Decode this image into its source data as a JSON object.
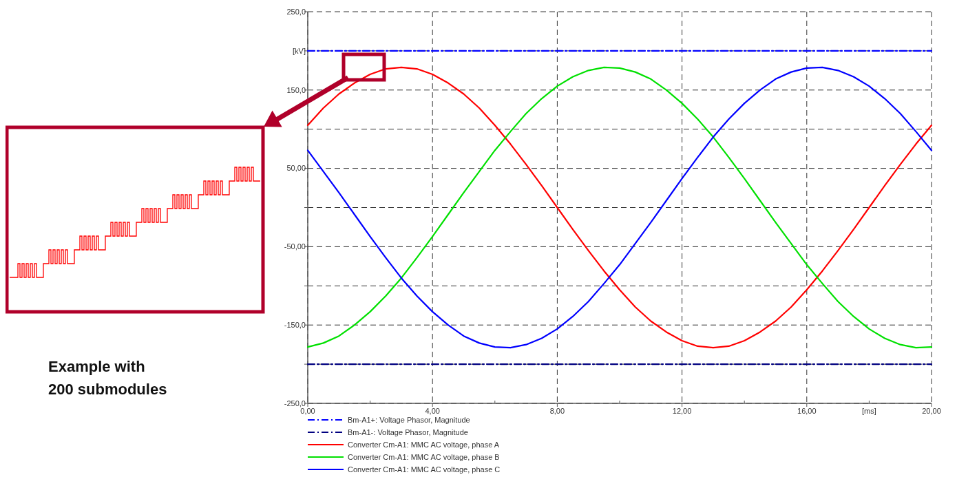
{
  "chart_data": {
    "type": "line",
    "xlabel": "[ms]",
    "ylabel": "[kV]",
    "xlim": [
      0,
      20
    ],
    "ylim": [
      -250,
      250
    ],
    "xticks": [
      {
        "value": 0,
        "label": "0,00"
      },
      {
        "value": 4,
        "label": "4,00"
      },
      {
        "value": 8,
        "label": "8,00"
      },
      {
        "value": 12,
        "label": "12,00"
      },
      {
        "value": 16,
        "label": "16,00"
      },
      {
        "value": 20,
        "label": "20,00"
      }
    ],
    "yticks": [
      {
        "value": -250,
        "label": "-250,0"
      },
      {
        "value": -200,
        "label": null
      },
      {
        "value": -150,
        "label": "-150,0"
      },
      {
        "value": -100,
        "label": null
      },
      {
        "value": -50,
        "label": "-50,00"
      },
      {
        "value": 0,
        "label": null
      },
      {
        "value": 50,
        "label": "50,00"
      },
      {
        "value": 100,
        "label": null
      },
      {
        "value": 150,
        "label": "150,0"
      },
      {
        "value": 200,
        "label": null
      },
      {
        "value": 250,
        "label": "250,0"
      }
    ],
    "grid": true,
    "legend": "bottom",
    "annotations": [
      "Example with 200 submodules"
    ],
    "x": [
      0,
      0.5,
      1,
      1.5,
      2,
      2.5,
      3,
      3.5,
      4,
      4.5,
      5,
      5.5,
      6,
      6.5,
      7,
      7.5,
      8,
      8.5,
      9,
      9.5,
      10,
      10.5,
      11,
      11.5,
      12,
      12.5,
      13,
      13.5,
      14,
      14.5,
      15,
      15.5,
      16,
      16.5,
      17,
      17.5,
      18,
      18.5,
      19,
      19.5,
      20
    ],
    "series": [
      {
        "name": "Bm-A1+: Voltage Phasor, Magnitude",
        "color": "#0000ff",
        "line_style": "dashdot",
        "values": [
          200,
          200,
          200,
          200,
          200,
          200,
          200,
          200,
          200,
          200,
          200,
          200,
          200,
          200,
          200,
          200,
          200,
          200,
          200,
          200,
          200,
          200,
          200,
          200,
          200,
          200,
          200,
          200,
          200,
          200,
          200,
          200,
          200,
          200,
          200,
          200,
          200,
          200,
          200,
          200,
          200
        ]
      },
      {
        "name": "Bm-A1-: Voltage Phasor, Magnitude",
        "color": "#000080",
        "line_style": "dashdot",
        "values": [
          -200,
          -200,
          -200,
          -200,
          -200,
          -200,
          -200,
          -200,
          -200,
          -200,
          -200,
          -200,
          -200,
          -200,
          -200,
          -200,
          -200,
          -200,
          -200,
          -200,
          -200,
          -200,
          -200,
          -200,
          -200,
          -200,
          -200,
          -200,
          -200,
          -200,
          -200,
          -200,
          -200,
          -200,
          -200,
          -200,
          -200,
          -200,
          -200,
          -200,
          -200
        ]
      },
      {
        "name": "Converter Cm-A1: MMC AC voltage, phase A",
        "color": "#ff0000",
        "line_style": "solid",
        "values": [
          105,
          127,
          145,
          159,
          170,
          177,
          179,
          177,
          170,
          159,
          145,
          127,
          105,
          81,
          55,
          28,
          0,
          -28,
          -55,
          -81,
          -105,
          -127,
          -145,
          -159,
          -170,
          -177,
          -179,
          -177,
          -170,
          -159,
          -145,
          -127,
          -105,
          -81,
          -55,
          -28,
          0,
          28,
          55,
          81,
          105
        ]
      },
      {
        "name": "Converter Cm-A1: MMC AC voltage, phase B",
        "color": "#00e000",
        "line_style": "solid",
        "values": [
          -178,
          -173,
          -164,
          -150,
          -133,
          -113,
          -90,
          -64,
          -37,
          -9,
          19,
          46,
          73,
          97,
          120,
          139,
          155,
          167,
          175,
          179,
          178,
          173,
          164,
          150,
          133,
          113,
          90,
          64,
          37,
          9,
          -19,
          -46,
          -73,
          -97,
          -120,
          -139,
          -155,
          -167,
          -175,
          -179,
          -178
        ]
      },
      {
        "name": "Converter Cm-A1: MMC AC voltage, phase C",
        "color": "#0000ff",
        "line_style": "solid",
        "values": [
          73,
          46,
          19,
          -9,
          -37,
          -64,
          -90,
          -113,
          -133,
          -150,
          -164,
          -173,
          -178,
          -179,
          -175,
          -167,
          -155,
          -139,
          -120,
          -97,
          -73,
          -46,
          -19,
          9,
          37,
          64,
          90,
          113,
          133,
          150,
          164,
          173,
          178,
          179,
          175,
          167,
          155,
          139,
          120,
          97,
          73
        ]
      }
    ]
  }
}
